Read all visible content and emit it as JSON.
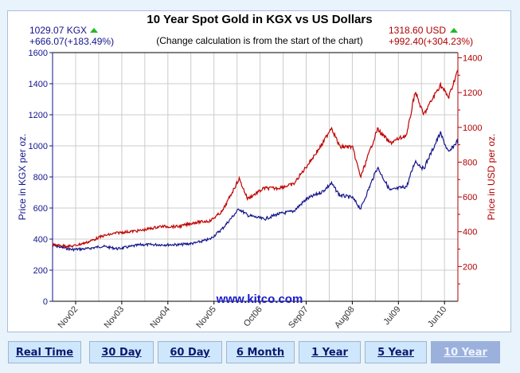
{
  "chart_data": {
    "type": "line",
    "title": "10 Year Spot Gold in KGX vs US Dollars",
    "subtitle": "(Change calculation is from the start of the chart)",
    "watermark": "www.kitco.com",
    "left_summary": {
      "price": "1029.07 KGX",
      "change": "+666.07(+183.49%)",
      "direction": "up"
    },
    "right_summary": {
      "price": "1318.60 USD",
      "change": "+992.40(+304.23%)",
      "direction": "up"
    },
    "ylabel_left": "Price in KGX per oz.",
    "ylabel_right": "Price in USD per oz.",
    "ylim_left": [
      0,
      1600
    ],
    "yticks_left": [
      0,
      200,
      400,
      600,
      800,
      1000,
      1200,
      1400,
      1600
    ],
    "ylim_right": [
      0,
      1430
    ],
    "yticks_right": [
      200,
      400,
      600,
      800,
      1000,
      1200,
      1400
    ],
    "xticks": [
      {
        "label": "Nov02",
        "date": "2002-11"
      },
      {
        "label": "Nov03",
        "date": "2003-11"
      },
      {
        "label": "Nov04",
        "date": "2004-11"
      },
      {
        "label": "Nov05",
        "date": "2005-11"
      },
      {
        "label": "Oct06",
        "date": "2006-10"
      },
      {
        "label": "Sep07",
        "date": "2007-09"
      },
      {
        "label": "Aug08",
        "date": "2008-08"
      },
      {
        "label": "Jul09",
        "date": "2009-07"
      },
      {
        "label": "Jun10",
        "date": "2010-06"
      }
    ],
    "grid": true,
    "x": [
      "2002-05",
      "2002-10",
      "2003-02",
      "2003-06",
      "2003-10",
      "2004-04",
      "2004-09",
      "2005-02",
      "2005-06",
      "2005-10",
      "2006-01",
      "2006-05",
      "2006-07",
      "2006-11",
      "2007-02",
      "2007-06",
      "2007-09",
      "2008-01",
      "2008-03",
      "2008-05",
      "2008-08",
      "2008-10",
      "2009-02",
      "2009-05",
      "2009-09",
      "2009-11",
      "2010-01",
      "2010-05",
      "2010-07",
      "2010-09"
    ],
    "series": [
      {
        "name": "KGX",
        "axis": "left",
        "color": "#14148c",
        "values": [
          359,
          333,
          338,
          354,
          338,
          364,
          364,
          364,
          374,
          400,
          467,
          595,
          554,
          528,
          559,
          580,
          656,
          708,
          759,
          682,
          667,
          595,
          862,
          713,
          740,
          903,
          851,
          1082,
          954,
          1029
        ]
      },
      {
        "name": "USD",
        "axis": "right",
        "color": "#c00000",
        "values": [
          325,
          316,
          339,
          375,
          394,
          407,
          430,
          430,
          453,
          462,
          517,
          705,
          590,
          650,
          650,
          673,
          773,
          910,
          1002,
          888,
          888,
          714,
          990,
          910,
          956,
          1208,
          1071,
          1245,
          1172,
          1319
        ]
      }
    ],
    "colors": {
      "up_arrow": "#22bb22",
      "left_axis": "#14148c",
      "right_axis": "#b00000"
    }
  },
  "buttons": [
    {
      "label": "Real Time",
      "active": false
    },
    {
      "label": "30 Day",
      "active": false
    },
    {
      "label": "60 Day",
      "active": false
    },
    {
      "label": "6 Month",
      "active": false
    },
    {
      "label": "1 Year",
      "active": false
    },
    {
      "label": "5 Year",
      "active": false
    },
    {
      "label": "10 Year",
      "active": true
    }
  ]
}
